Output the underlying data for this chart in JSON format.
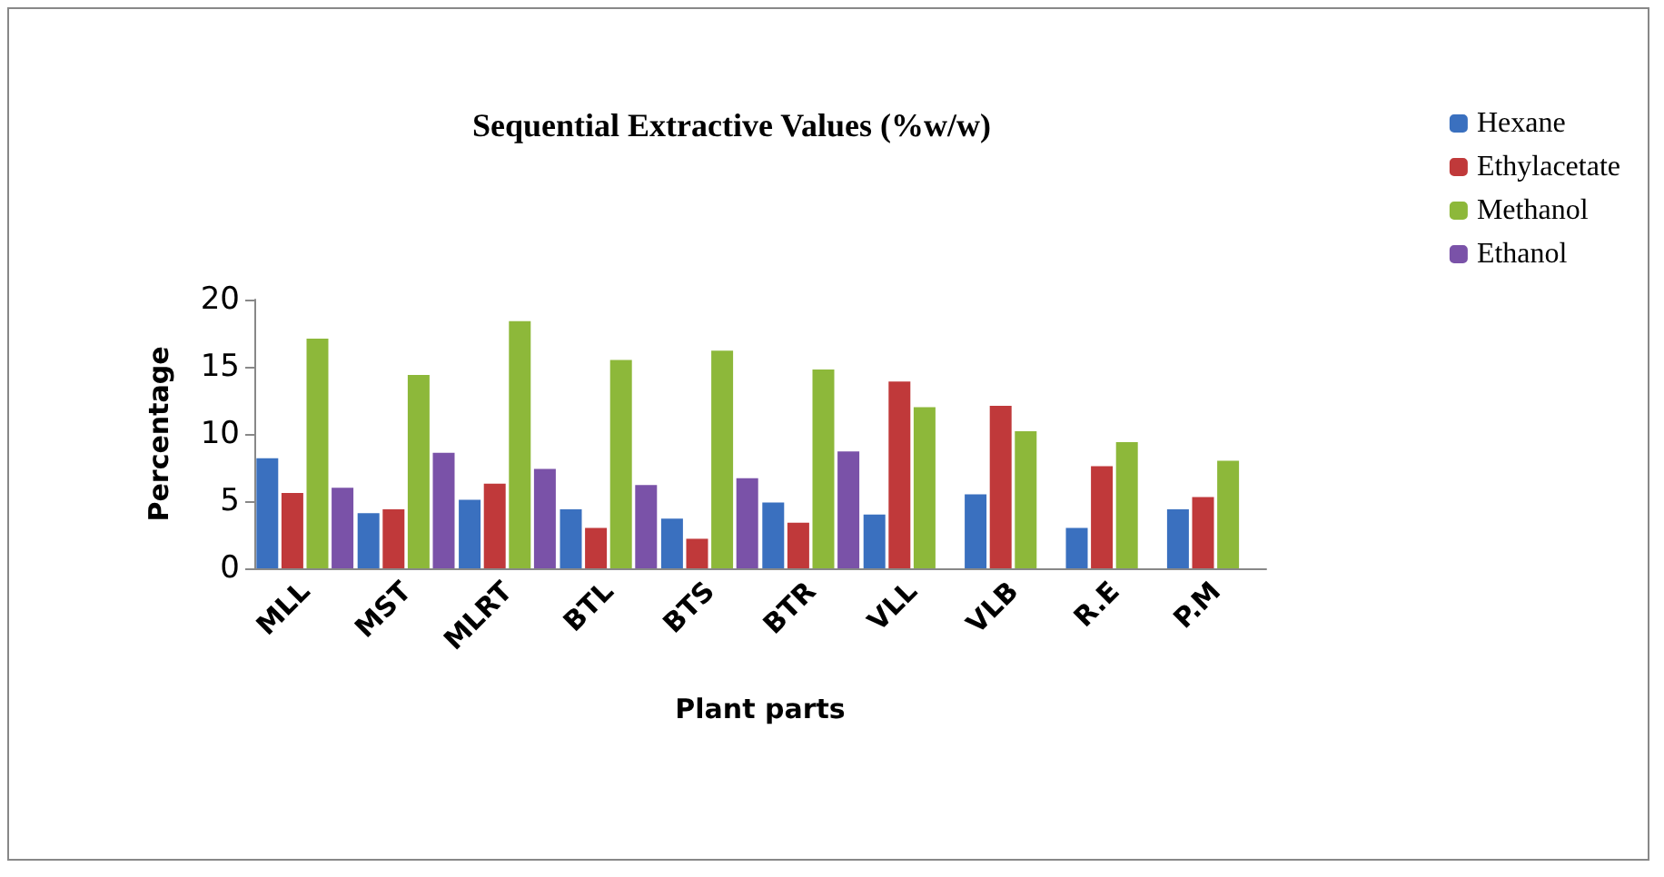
{
  "chart_data": {
    "type": "bar",
    "title": "Sequential Extractive Values (%w/w)",
    "xlabel": "Plant parts",
    "ylabel": "Percentage",
    "categories": [
      "MLL",
      "MST",
      "MLRT",
      "BTL",
      "BTS",
      "BTR",
      "VLL",
      "VLB",
      "R.E",
      "P.M"
    ],
    "series": [
      {
        "name": "Hexane",
        "color": "#3a70bf",
        "values": [
          8.2,
          4.1,
          5.1,
          4.4,
          3.7,
          4.9,
          4.0,
          5.5,
          3.0,
          4.4
        ]
      },
      {
        "name": "Ethylacetate",
        "color": "#c0393a",
        "values": [
          5.6,
          4.4,
          6.3,
          3.0,
          2.2,
          3.4,
          13.9,
          12.1,
          7.6,
          5.3
        ]
      },
      {
        "name": "Methanol",
        "color": "#8db83a",
        "values": [
          17.1,
          14.4,
          18.4,
          15.5,
          16.2,
          14.8,
          12.0,
          10.2,
          9.4,
          8.0
        ]
      },
      {
        "name": "Ethanol",
        "color": "#7a52a8",
        "values": [
          6.0,
          8.6,
          7.4,
          6.2,
          6.7,
          8.7,
          null,
          null,
          null,
          null
        ]
      }
    ],
    "ylim": [
      0,
      20
    ],
    "yticks": [
      0,
      5,
      10,
      15,
      20
    ],
    "grid": false,
    "legend": "top right"
  }
}
